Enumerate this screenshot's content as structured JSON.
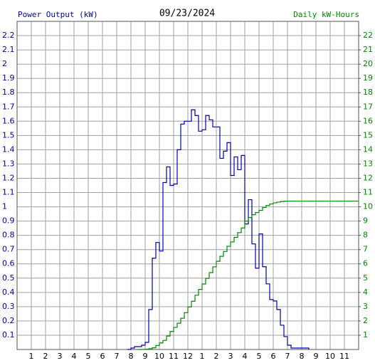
{
  "chart_data": {
    "type": "step-line",
    "title": "09/23/2024",
    "y_label": "Power Output (kW)",
    "y2_label": "Daily kW-Hours",
    "xlim": [
      0,
      24
    ],
    "xticks": [
      1,
      2,
      3,
      4,
      5,
      6,
      7,
      8,
      9,
      10,
      11,
      12,
      {
        "value": 13,
        "label": "1"
      },
      {
        "value": 14,
        "label": "2"
      },
      {
        "value": 15,
        "label": "3"
      },
      {
        "value": 16,
        "label": "4"
      },
      {
        "value": 17,
        "label": "5"
      },
      {
        "value": 18,
        "label": "6"
      },
      {
        "value": 19,
        "label": "7"
      },
      {
        "value": 20,
        "label": "8"
      },
      {
        "value": 21,
        "label": "9"
      },
      {
        "value": 22,
        "label": "10"
      },
      {
        "value": 23,
        "label": "11"
      }
    ],
    "ylim": [
      0,
      2.3
    ],
    "yticks": [
      0.1,
      0.2,
      0.3,
      0.4,
      0.5,
      0.6,
      0.7,
      0.8,
      0.9,
      1.0,
      1.1,
      1.2,
      1.3,
      1.4,
      1.5,
      1.6,
      1.7,
      1.8,
      1.9,
      2.0,
      2.1,
      2.2
    ],
    "y2lim": [
      0,
      23
    ],
    "y2ticks": [
      1,
      2,
      3,
      4,
      5,
      6,
      7,
      8,
      9,
      10,
      11,
      12,
      13,
      14,
      15,
      16,
      17,
      18,
      19,
      20,
      21,
      22
    ],
    "grid": true,
    "series": [
      {
        "name": "Power Output (kW)",
        "color": "#0000aa",
        "axis": "y",
        "x": [
          7.75,
          8,
          8.25,
          8.5,
          8.75,
          9,
          9.25,
          9.5,
          9.75,
          10,
          10.25,
          10.5,
          10.75,
          11,
          11.25,
          11.5,
          11.75,
          12,
          12.25,
          12.5,
          12.75,
          13,
          13.25,
          13.5,
          13.75,
          14,
          14.25,
          14.5,
          14.75,
          15,
          15.25,
          15.5,
          15.75,
          16,
          16.25,
          16.5,
          16.75,
          17,
          17.25,
          17.5,
          17.75,
          18,
          18.25,
          18.5,
          18.75,
          19,
          19.25,
          19.5,
          19.75,
          20,
          20.25,
          20.5
        ],
        "values": [
          0,
          0.01,
          0.02,
          0.02,
          0.03,
          0.05,
          0.28,
          0.64,
          0.75,
          0.69,
          1.17,
          1.28,
          1.15,
          1.16,
          1.4,
          1.58,
          1.6,
          1.6,
          1.68,
          1.64,
          1.53,
          1.54,
          1.64,
          1.61,
          1.56,
          1.56,
          1.34,
          1.39,
          1.45,
          1.22,
          1.35,
          1.26,
          1.36,
          0.88,
          1.05,
          0.74,
          0.57,
          0.81,
          0.58,
          0.46,
          0.35,
          0.34,
          0.28,
          0.17,
          0.09,
          0.03,
          0.01,
          0.01,
          0.01,
          0.01,
          0.01,
          0
        ]
      },
      {
        "name": "Daily kW-Hours",
        "color": "#008800",
        "axis": "y2",
        "x": [
          8.5,
          8.75,
          9,
          9.25,
          9.5,
          9.75,
          10,
          10.25,
          10.5,
          10.75,
          11,
          11.25,
          11.5,
          11.75,
          12,
          12.25,
          12.5,
          12.75,
          13,
          13.25,
          13.5,
          13.75,
          14,
          14.25,
          14.5,
          14.75,
          15,
          15.25,
          15.5,
          15.75,
          16,
          16.25,
          16.5,
          16.75,
          17,
          17.25,
          17.5,
          17.75,
          18,
          18.25,
          18.5,
          18.75,
          19,
          24
        ],
        "values": [
          0,
          0.01,
          0.02,
          0.05,
          0.12,
          0.28,
          0.46,
          0.64,
          0.94,
          1.26,
          1.55,
          1.84,
          2.19,
          2.58,
          2.98,
          3.38,
          3.8,
          4.21,
          4.59,
          4.98,
          5.39,
          5.79,
          6.18,
          6.53,
          6.87,
          7.23,
          7.54,
          7.86,
          8.19,
          8.52,
          9.0,
          9.25,
          9.45,
          9.6,
          9.75,
          9.95,
          10.1,
          10.2,
          10.28,
          10.33,
          10.37,
          10.39,
          10.4,
          10.4
        ]
      }
    ]
  }
}
